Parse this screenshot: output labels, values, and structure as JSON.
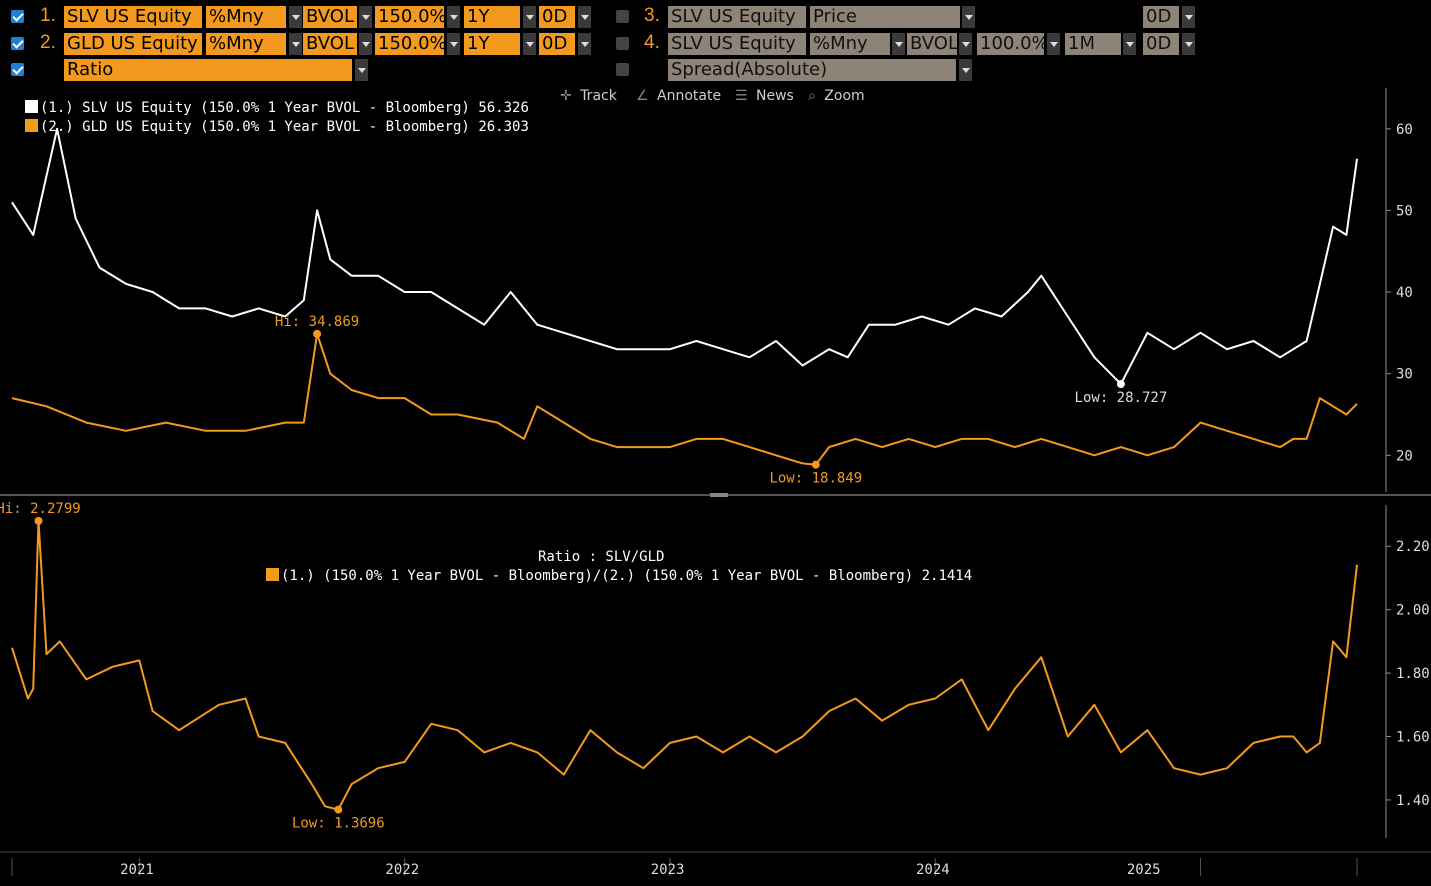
{
  "controls": {
    "rows": [
      {
        "checked": true,
        "num": "1.",
        "security": "SLV US Equity",
        "field": "%Mny",
        "source": "BVOL",
        "moneyness": "150.0%",
        "tenor": "1Y",
        "offset": "0D"
      },
      {
        "checked": true,
        "num": "2.",
        "security": "GLD US Equity",
        "field": "%Mny",
        "source": "BVOL",
        "moneyness": "150.0%",
        "tenor": "1Y",
        "offset": "0D"
      },
      {
        "checked": true,
        "label": "Ratio"
      }
    ],
    "rows_right": [
      {
        "checked": false,
        "num": "3.",
        "security": "SLV US Equity",
        "field": "Price",
        "offset": "0D"
      },
      {
        "checked": false,
        "num": "4.",
        "security": "SLV US Equity",
        "field": "%Mny",
        "source": "BVOL",
        "moneyness": "100.0%",
        "tenor": "1M",
        "offset": "0D"
      },
      {
        "checked": false,
        "label": "Spread(Absolute)"
      }
    ]
  },
  "toolbar": {
    "track": "Track",
    "annotate": "Annotate",
    "news": "News",
    "zoom": "Zoom"
  },
  "legend_top": [
    {
      "label": "(1.) SLV US Equity  (150.0% 1 Year BVOL - Bloomberg)",
      "value": "56.326",
      "color": "#ffffff"
    },
    {
      "label": "(2.) GLD US Equity  (150.0% 1 Year BVOL - Bloomberg)",
      "value": "26.303",
      "color": "#f39a1e"
    }
  ],
  "legend_bottom": {
    "title": "Ratio : SLV/GLD",
    "label": "(1.)  (150.0% 1 Year BVOL - Bloomberg)/(2.)  (150.0% 1 Year BVOL - Bloomberg)",
    "value": "2.1414"
  },
  "annotations": {
    "gld_hi": "Hi: 34.869",
    "gld_low": "Low: 18.849",
    "slv_low": "Low: 28.727",
    "ratio_hi": "Hi: 2.2799",
    "ratio_low": "Low: 1.3696"
  },
  "colors": {
    "slv": "#ffffff",
    "gld": "#f39a1e",
    "ratio": "#f39a1e",
    "axis": "#8c8c8c"
  },
  "chart_data": [
    {
      "type": "line",
      "yticks": [
        20,
        30,
        40,
        50,
        60
      ],
      "ylim": [
        15.5,
        65
      ],
      "xlim": [
        2020.52,
        2025.59
      ],
      "series": [
        {
          "name": "(1.) SLV US Equity (150.0% 1 Year BVOL - Bloomberg)",
          "last": 56.326,
          "x": [
            2020.52,
            2020.6,
            2020.69,
            2020.76,
            2020.85,
            2020.95,
            2021.05,
            2021.15,
            2021.25,
            2021.35,
            2021.45,
            2021.55,
            2021.62,
            2021.67,
            2021.72,
            2021.8,
            2021.9,
            2022.0,
            2022.1,
            2022.2,
            2022.3,
            2022.4,
            2022.5,
            2022.6,
            2022.7,
            2022.8,
            2022.9,
            2023.0,
            2023.1,
            2023.2,
            2023.3,
            2023.4,
            2023.5,
            2023.6,
            2023.67,
            2023.75,
            2023.85,
            2023.95,
            2024.05,
            2024.15,
            2024.25,
            2024.35,
            2024.4,
            2024.5,
            2024.6,
            2024.7,
            2024.8,
            2024.9,
            2025.0,
            2025.1,
            2025.2,
            2025.3,
            2025.35,
            2025.4,
            2025.45,
            2025.5,
            2025.55,
            2025.59
          ],
          "y": [
            51,
            47,
            60,
            49,
            43,
            41,
            40,
            38,
            38,
            37,
            38,
            37,
            39,
            50,
            44,
            42,
            42,
            40,
            40,
            38,
            36,
            40,
            36,
            35,
            34,
            33,
            33,
            33,
            34,
            33,
            32,
            34,
            31,
            33,
            32,
            36,
            36,
            37,
            36,
            38,
            37,
            40,
            42,
            37,
            32,
            28.727,
            35,
            33,
            35,
            33,
            34,
            32,
            33,
            34,
            41,
            48,
            47,
            56.326
          ]
        },
        {
          "name": "(2.) GLD US Equity (150.0% 1 Year BVOL - Bloomberg)",
          "last": 26.303,
          "x": [
            2020.52,
            2020.65,
            2020.8,
            2020.95,
            2021.1,
            2021.25,
            2021.4,
            2021.55,
            2021.62,
            2021.67,
            2021.72,
            2021.8,
            2021.9,
            2022.0,
            2022.1,
            2022.2,
            2022.35,
            2022.45,
            2022.5,
            2022.6,
            2022.7,
            2022.8,
            2022.9,
            2023.0,
            2023.1,
            2023.2,
            2023.3,
            2023.4,
            2023.5,
            2023.55,
            2023.6,
            2023.7,
            2023.8,
            2023.9,
            2024.0,
            2024.1,
            2024.2,
            2024.3,
            2024.4,
            2024.5,
            2024.6,
            2024.7,
            2024.8,
            2024.9,
            2025.0,
            2025.1,
            2025.2,
            2025.3,
            2025.35,
            2025.4,
            2025.45,
            2025.5,
            2025.55,
            2025.59
          ],
          "y": [
            27,
            26,
            24,
            23,
            24,
            23,
            23,
            24,
            24,
            34.869,
            30,
            28,
            27,
            27,
            25,
            25,
            24,
            22,
            26,
            24,
            22,
            21,
            21,
            21,
            22,
            22,
            21,
            20,
            19,
            18.849,
            21,
            22,
            21,
            22,
            21,
            22,
            22,
            21,
            22,
            21,
            20,
            21,
            20,
            21,
            24,
            23,
            22,
            21,
            22,
            22,
            27,
            26,
            25,
            26.303
          ]
        }
      ],
      "annotations": [
        {
          "text": "Hi: 34.869",
          "x": 2021.67,
          "y": 34.869
        },
        {
          "text": "Low: 18.849",
          "x": 2023.55,
          "y": 18.849
        },
        {
          "text": "Low: 28.727",
          "x": 2024.7,
          "y": 28.727
        }
      ]
    },
    {
      "type": "line",
      "title": "Ratio : SLV/GLD",
      "yticks": [
        1.4,
        1.6,
        1.8,
        2.0,
        2.2
      ],
      "ylim": [
        1.28,
        2.33
      ],
      "xlim": [
        2020.52,
        2025.59
      ],
      "categories": [
        "2021",
        "2022",
        "2023",
        "2024",
        "2025"
      ],
      "series": [
        {
          "name": "(1.) (150.0% 1 Year BVOL - Bloomberg)/(2.) (150.0% 1 Year BVOL - Bloomberg)",
          "last": 2.1414,
          "x": [
            2020.52,
            2020.58,
            2020.6,
            2020.62,
            2020.65,
            2020.7,
            2020.8,
            2020.9,
            2021.0,
            2021.05,
            2021.15,
            2021.3,
            2021.4,
            2021.45,
            2021.55,
            2021.65,
            2021.7,
            2021.75,
            2021.8,
            2021.9,
            2022.0,
            2022.1,
            2022.2,
            2022.3,
            2022.4,
            2022.5,
            2022.6,
            2022.7,
            2022.8,
            2022.9,
            2023.0,
            2023.1,
            2023.2,
            2023.3,
            2023.4,
            2023.5,
            2023.6,
            2023.7,
            2023.8,
            2023.9,
            2024.0,
            2024.1,
            2024.2,
            2024.3,
            2024.4,
            2024.5,
            2024.6,
            2024.7,
            2024.8,
            2024.9,
            2025.0,
            2025.1,
            2025.2,
            2025.3,
            2025.35,
            2025.4,
            2025.45,
            2025.5,
            2025.55,
            2025.59
          ],
          "y": [
            1.88,
            1.72,
            1.75,
            2.2799,
            1.86,
            1.9,
            1.78,
            1.82,
            1.84,
            1.68,
            1.62,
            1.7,
            1.72,
            1.6,
            1.58,
            1.45,
            1.38,
            1.3696,
            1.45,
            1.5,
            1.52,
            1.64,
            1.62,
            1.55,
            1.58,
            1.55,
            1.48,
            1.62,
            1.55,
            1.5,
            1.58,
            1.6,
            1.55,
            1.6,
            1.55,
            1.6,
            1.68,
            1.72,
            1.65,
            1.7,
            1.72,
            1.78,
            1.62,
            1.75,
            1.85,
            1.6,
            1.7,
            1.55,
            1.62,
            1.5,
            1.48,
            1.5,
            1.58,
            1.6,
            1.6,
            1.55,
            1.58,
            1.9,
            1.85,
            2.1414
          ]
        }
      ],
      "annotations": [
        {
          "text": "Hi: 2.2799",
          "x": 2020.62,
          "y": 2.2799
        },
        {
          "text": "Low: 1.3696",
          "x": 2021.75,
          "y": 1.3696
        }
      ]
    }
  ]
}
